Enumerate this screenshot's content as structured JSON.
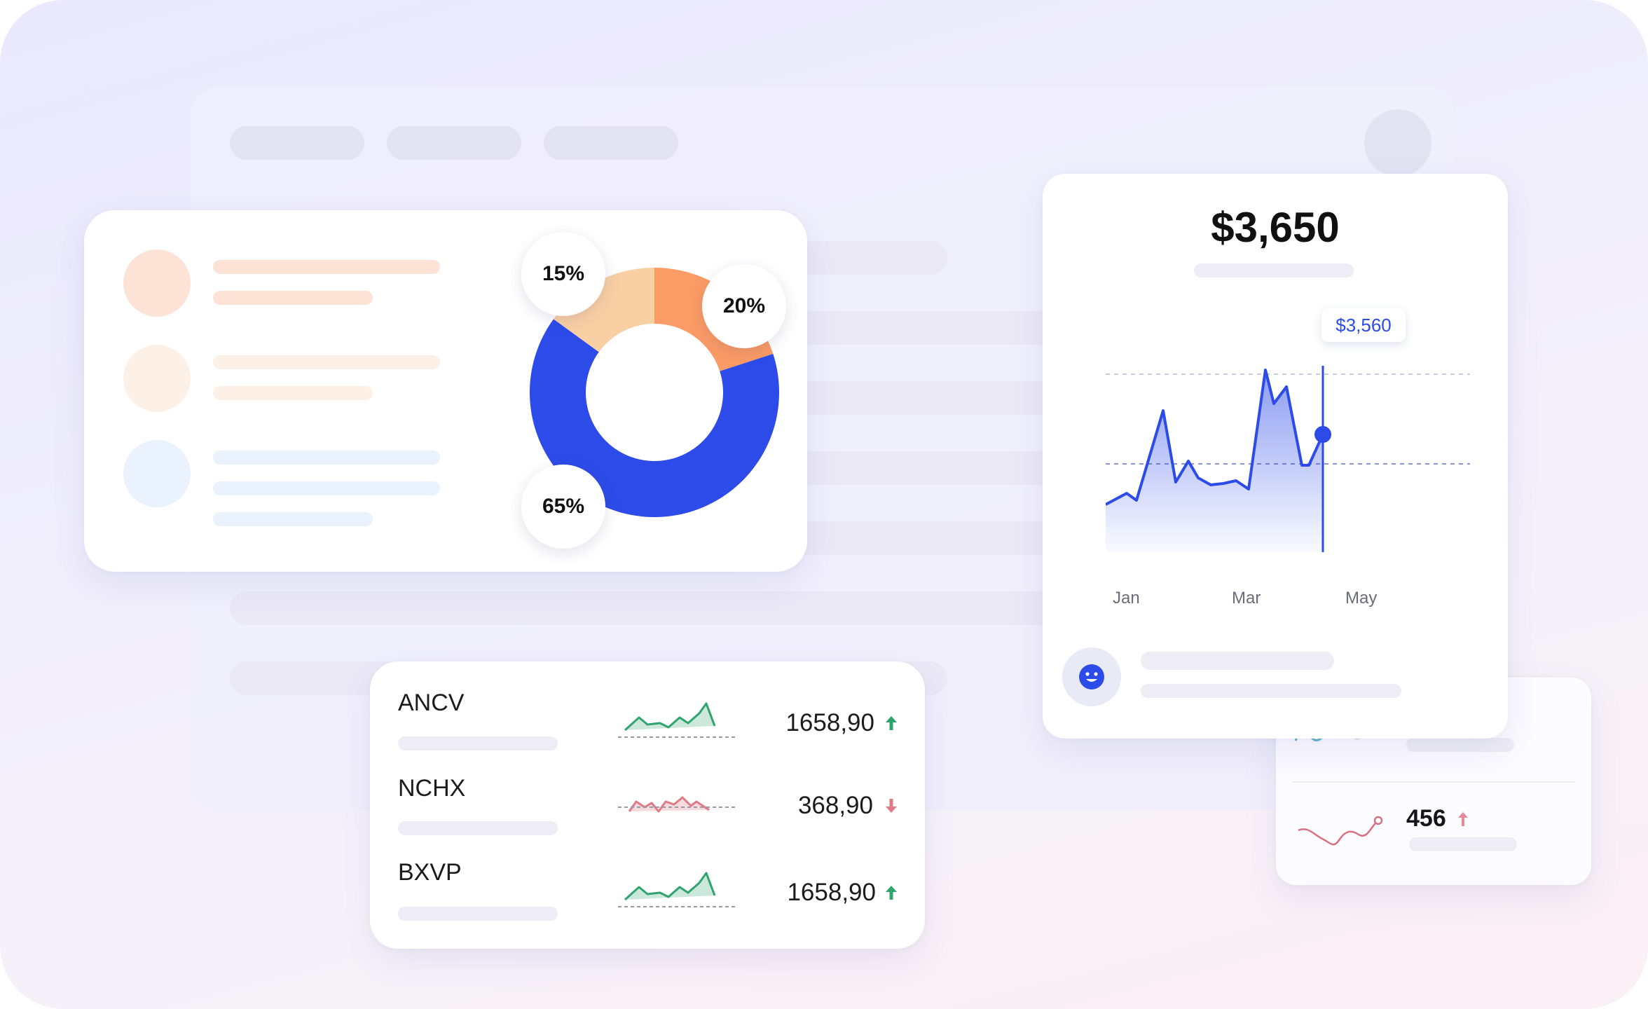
{
  "donut": {
    "segments": [
      {
        "label": "15%",
        "value": 15,
        "color": "#f9cfa4"
      },
      {
        "label": "20%",
        "value": 20,
        "color": "#fb9b65"
      },
      {
        "label": "65%",
        "value": 65,
        "color": "#2d4be8"
      }
    ]
  },
  "tickers": [
    {
      "name": "ANCV",
      "value": "1658,90",
      "trend": "up",
      "color": "#2fa46d"
    },
    {
      "name": "NCHX",
      "value": "368,90",
      "trend": "down",
      "color": "#e07a87"
    },
    {
      "name": "BXVP",
      "value": "1658,90",
      "trend": "up",
      "color": "#2fa46d"
    }
  ],
  "price_card": {
    "total": "$3,650",
    "tooltip": "$3,560",
    "months": [
      "Jan",
      "Mar",
      "May"
    ],
    "accent": "#2d4be8"
  },
  "mini_card": {
    "value": "456",
    "trend": "up"
  },
  "icons": {
    "avatar": "smiley-face-icon",
    "up": "arrow-up-icon",
    "down": "arrow-down-icon"
  }
}
